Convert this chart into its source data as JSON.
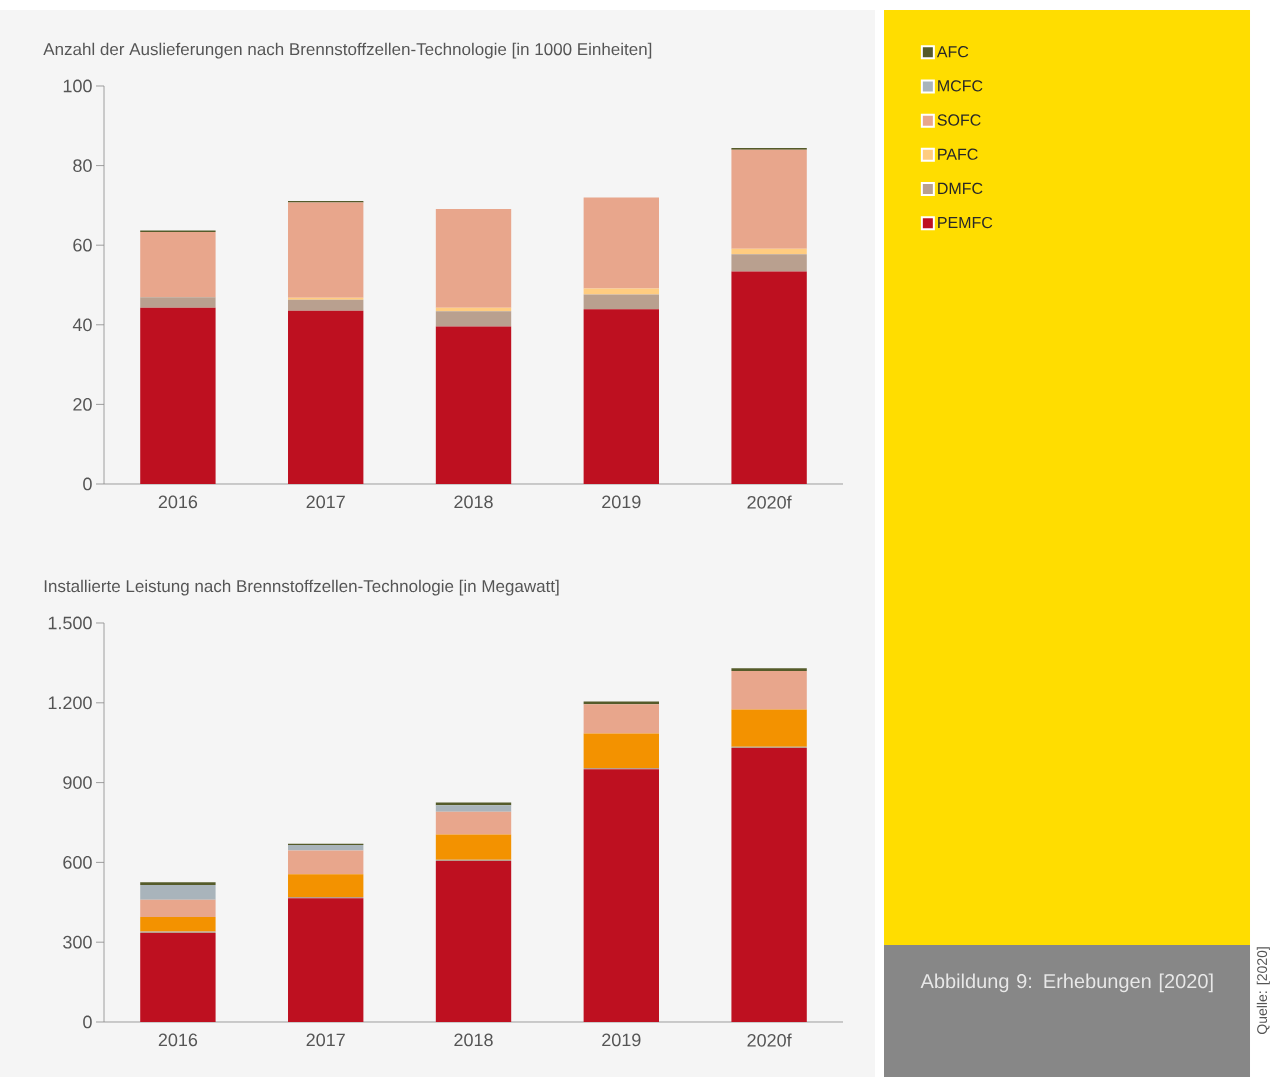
{
  "chart_data": [
    {
      "type": "bar",
      "stacked": true,
      "title": "Anzahl der Auslieferungen nach Brennstoffzellen-Technologie [in 1000 Einheiten]",
      "categories": [
        "2016",
        "2017",
        "2018",
        "2019",
        "2020f"
      ],
      "series": [
        {
          "name": "PEMFC",
          "color": "#be1020",
          "values": [
            44.3,
            43.5,
            39.6,
            43.9,
            53.4
          ]
        },
        {
          "name": "DMFC",
          "color": "#b9a08f",
          "values": [
            2.6,
            2.8,
            3.8,
            3.7,
            4.3
          ]
        },
        {
          "name": "PAFC",
          "color": "#ffcc80",
          "values": [
            null,
            0.5,
            0.9,
            1.5,
            1.4
          ]
        },
        {
          "name": "SOFC",
          "color": "#e8a68c",
          "values": [
            16.4,
            23.9,
            24.8,
            22.9,
            24.9
          ]
        },
        {
          "name": "MCFC",
          "color": "#a9b4bb",
          "values": [
            0,
            0,
            0,
            0,
            0
          ]
        },
        {
          "name": "AFC",
          "color": "#555b2a",
          "values": [
            0.4,
            0.4,
            0,
            null,
            0.4
          ]
        }
      ],
      "ylim": [
        0,
        100
      ],
      "yticks": [
        0,
        20,
        40,
        60,
        80,
        100
      ],
      "legend": "right",
      "annotations": [
        "Abbildung 9: Erhebungen [2020]",
        "Quelle: [2020]"
      ]
    },
    {
      "type": "bar",
      "stacked": true,
      "title": "Installierte Leistung nach Brennstoffzellen-Technologie [in Megawatt]",
      "categories": [
        "2016",
        "2017",
        "2018",
        "2019",
        "2020f"
      ],
      "series": [
        {
          "color": "#be1020",
          "values": [
            335,
            465,
            605,
            950,
            1030
          ]
        },
        {
          "color": "#b9a08f",
          "values": [
            5,
            5,
            5,
            5,
            5
          ]
        },
        {
          "color": "#f39200",
          "values": [
            55,
            85,
            95,
            130,
            140
          ]
        },
        {
          "color": "#e8a68c",
          "values": [
            65,
            90,
            85,
            110,
            145
          ]
        },
        {
          "color": "#a9b4bb",
          "values": [
            55,
            20,
            25,
            null,
            null
          ]
        },
        {
          "color": "#555b2a",
          "values": [
            10,
            5,
            10,
            10,
            10
          ]
        }
      ],
      "ylim": [
        0,
        1500
      ],
      "yticks": [
        0,
        300,
        600,
        900,
        {
          "value": 1200,
          "label": "1.200"
        },
        {
          "value": 1500,
          "label": "1.500"
        }
      ]
    }
  ]
}
